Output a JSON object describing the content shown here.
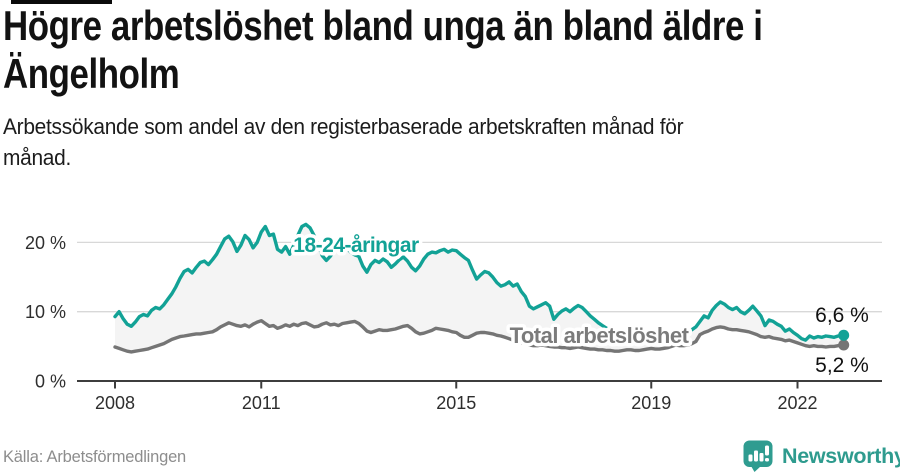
{
  "header": {
    "title_lines": [
      "Högre arbetslöshet bland unga än bland äldre i",
      "Ängelholm"
    ],
    "subtitle_lines": [
      "Arbetssökande som andel av den registerbaserade arbetskraften månad för",
      "månad."
    ]
  },
  "footer": {
    "source": "Källa: Arbetsförmedlingen",
    "brand": "Newsworthy"
  },
  "colors": {
    "young_line": "#12a296",
    "total_line": "#757575",
    "young_label": "#12a296",
    "total_label": "#7b7b7b",
    "grid": "#d8d8d8",
    "axis": "#3d3d3d",
    "fill_between": "#f4f4f4",
    "end_label_text": "#111111",
    "tick_label": "#2e2e2e",
    "halo": "#ffffff",
    "brand_teal": "#2f9c90"
  },
  "chart_data": {
    "type": "line",
    "title": "Arbetssökande som andel av den registerbaserade arbetskraften månad för månad",
    "x_unit": "month",
    "x_start_year": 2008,
    "xlim": [
      2008,
      2023.2
    ],
    "ylim": [
      0,
      24
    ],
    "grid": "horizontal",
    "x_ticks": [
      {
        "year": 2008,
        "label": "2008"
      },
      {
        "year": 2011,
        "label": "2011"
      },
      {
        "year": 2015,
        "label": "2015"
      },
      {
        "year": 2019,
        "label": "2019"
      },
      {
        "year": 2022,
        "label": "2022"
      }
    ],
    "y_ticks": [
      {
        "value": 0,
        "label": "0 %"
      },
      {
        "value": 10,
        "label": "10 %"
      },
      {
        "value": 20,
        "label": "20 %"
      }
    ],
    "series": [
      {
        "name": "young",
        "label": "18-24-åringar",
        "end_value_label": "6,6 %",
        "values": [
          9.3,
          10.0,
          9.0,
          8.2,
          7.9,
          8.5,
          9.3,
          9.6,
          9.4,
          10.2,
          10.6,
          10.4,
          11.0,
          11.8,
          12.6,
          13.6,
          14.8,
          15.8,
          16.1,
          15.6,
          16.4,
          17.1,
          17.3,
          16.8,
          17.5,
          18.3,
          19.4,
          20.5,
          20.9,
          20.1,
          18.7,
          19.6,
          21.0,
          20.4,
          19.2,
          20.0,
          21.5,
          22.3,
          21.0,
          21.2,
          19.0,
          18.6,
          19.4,
          18.3,
          19.6,
          21.0,
          22.3,
          22.6,
          22.1,
          21.0,
          19.8,
          18.1,
          17.4,
          18.0,
          18.8,
          19.5,
          20.0,
          19.3,
          18.6,
          18.2,
          18.0,
          16.6,
          15.7,
          16.8,
          17.4,
          17.1,
          17.6,
          17.2,
          16.4,
          16.9,
          17.5,
          17.9,
          17.3,
          16.4,
          15.9,
          16.6,
          17.6,
          18.3,
          18.6,
          18.5,
          18.8,
          19.0,
          18.6,
          18.9,
          18.8,
          18.3,
          17.8,
          17.4,
          16.0,
          14.7,
          15.3,
          15.8,
          15.6,
          15.0,
          14.2,
          13.7,
          13.9,
          14.3,
          13.7,
          14.0,
          12.9,
          12.2,
          10.8,
          10.4,
          10.7,
          11.0,
          11.3,
          10.8,
          8.9,
          9.6,
          10.1,
          10.4,
          10.0,
          10.5,
          10.9,
          10.6,
          10.0,
          9.4,
          8.9,
          8.4,
          8.0,
          7.6,
          7.3,
          7.0,
          6.8,
          6.9,
          7.1,
          6.8,
          6.4,
          6.2,
          6.3,
          6.1,
          6.3,
          6.5,
          6.2,
          6.4,
          6.6,
          6.9,
          7.2,
          7.0,
          6.8,
          7.1,
          7.4,
          7.8,
          8.6,
          9.4,
          9.1,
          10.2,
          10.9,
          11.4,
          11.1,
          10.6,
          10.3,
          10.6,
          10.0,
          9.7,
          10.2,
          10.8,
          10.1,
          9.4,
          8.0,
          8.8,
          8.6,
          8.2,
          7.9,
          7.2,
          7.5,
          7.0,
          6.6,
          6.1,
          5.9,
          6.5,
          6.2,
          6.4,
          6.3,
          6.5,
          6.4,
          6.3,
          6.5,
          6.6
        ]
      },
      {
        "name": "total",
        "label": "Total arbetslöshet",
        "end_value_label": "5,2 %",
        "values": [
          4.9,
          4.7,
          4.5,
          4.3,
          4.2,
          4.3,
          4.4,
          4.5,
          4.6,
          4.8,
          5.0,
          5.2,
          5.4,
          5.7,
          6.0,
          6.2,
          6.4,
          6.5,
          6.6,
          6.7,
          6.8,
          6.8,
          6.9,
          7.0,
          7.1,
          7.4,
          7.8,
          8.1,
          8.4,
          8.2,
          8.0,
          7.9,
          8.1,
          7.8,
          8.2,
          8.5,
          8.7,
          8.3,
          7.9,
          8.0,
          7.6,
          7.8,
          8.1,
          7.9,
          8.2,
          8.0,
          8.3,
          8.4,
          8.1,
          7.8,
          7.9,
          8.2,
          8.4,
          8.1,
          8.2,
          8.0,
          8.3,
          8.4,
          8.5,
          8.6,
          8.3,
          7.8,
          7.2,
          7.0,
          7.2,
          7.4,
          7.3,
          7.3,
          7.4,
          7.5,
          7.7,
          7.9,
          8.0,
          7.6,
          7.1,
          6.8,
          6.9,
          7.1,
          7.3,
          7.6,
          7.5,
          7.4,
          7.3,
          7.1,
          7.0,
          6.6,
          6.3,
          6.3,
          6.6,
          6.9,
          7.0,
          7.0,
          6.9,
          6.8,
          6.6,
          6.5,
          6.3,
          6.1,
          5.9,
          5.7,
          5.5,
          5.4,
          5.2,
          5.1,
          5.1,
          5.2,
          5.1,
          5.0,
          4.9,
          4.9,
          4.8,
          4.8,
          4.7,
          4.8,
          4.9,
          4.8,
          4.7,
          4.6,
          4.6,
          4.5,
          4.5,
          4.4,
          4.4,
          4.3,
          4.3,
          4.4,
          4.5,
          4.5,
          4.4,
          4.4,
          4.5,
          4.6,
          4.7,
          4.6,
          4.6,
          4.7,
          4.8,
          5.0,
          5.2,
          5.1,
          5.1,
          5.2,
          5.4,
          5.7,
          6.7,
          7.0,
          7.2,
          7.5,
          7.7,
          7.8,
          7.7,
          7.5,
          7.4,
          7.4,
          7.3,
          7.2,
          7.1,
          6.9,
          6.7,
          6.4,
          6.3,
          6.4,
          6.2,
          6.1,
          6.0,
          5.8,
          5.9,
          5.7,
          5.5,
          5.3,
          5.1,
          5.0,
          5.1,
          5.0,
          5.0,
          4.9,
          5.0,
          5.0,
          5.1,
          5.2
        ]
      }
    ]
  }
}
